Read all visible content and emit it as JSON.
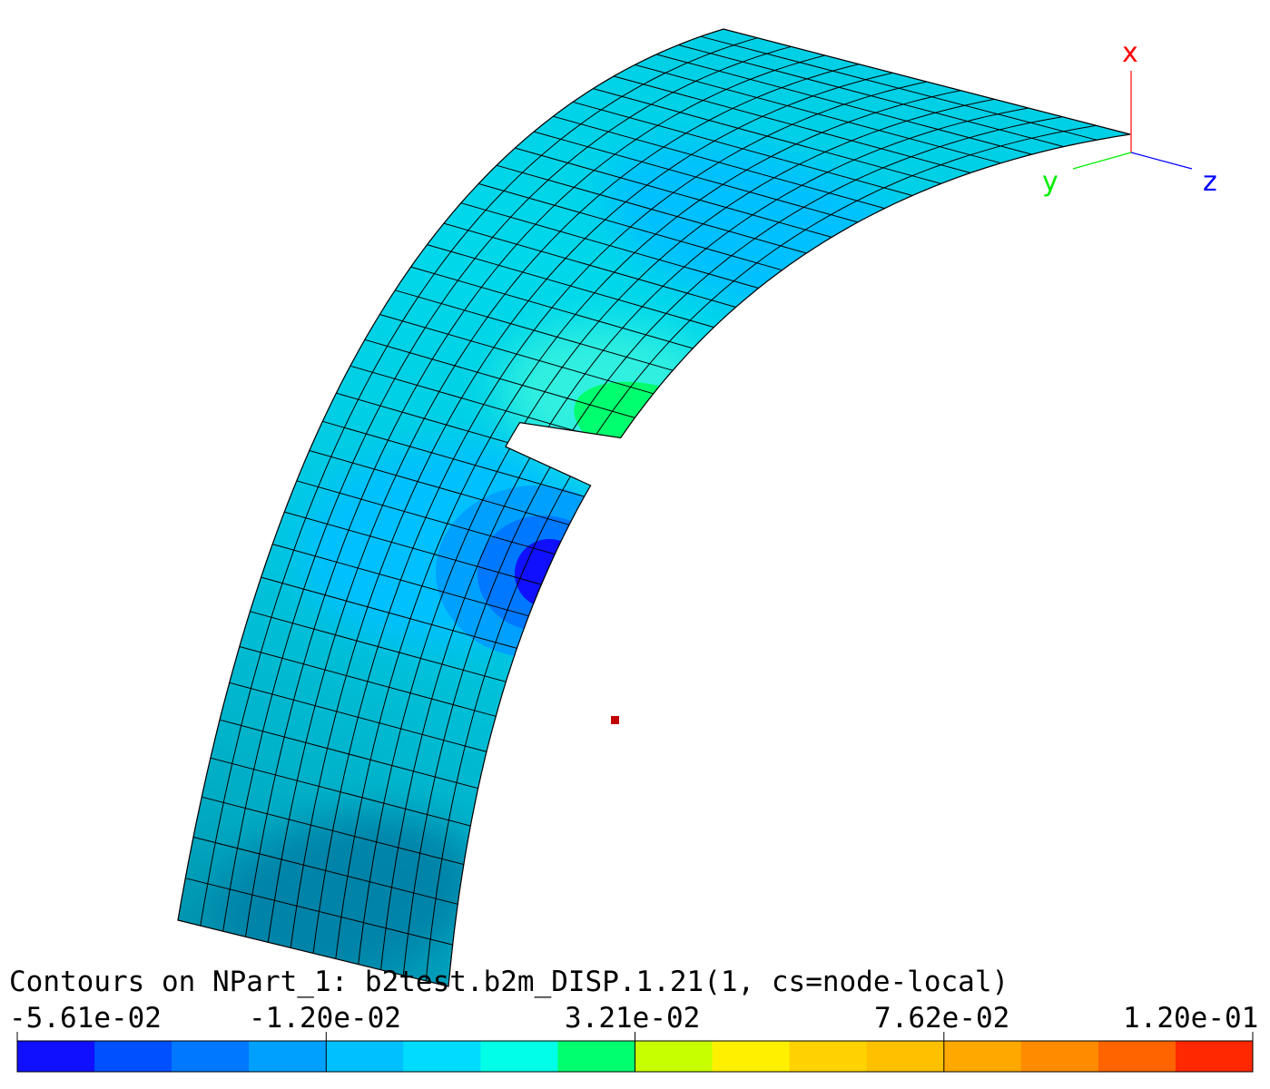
{
  "title": "Contours on NPart_1: b2test.b2m_DISP.1.21(1, cs=node-local)",
  "axes": {
    "x_label": "x",
    "y_label": "y",
    "z_label": "z",
    "x_color": "#ff0000",
    "y_color": "#00ee00",
    "z_color": "#0000ff"
  },
  "legend": {
    "labels": [
      "-5.61e-02",
      "-1.20e-02",
      "3.21e-02",
      "7.62e-02",
      "1.20e-01"
    ],
    "colors": [
      "#1010ff",
      "#0050ff",
      "#0078ff",
      "#00a0ff",
      "#00c0ff",
      "#00dcff",
      "#00ffe6",
      "#00ff6e",
      "#c8ff00",
      "#fff000",
      "#ffd200",
      "#ffc000",
      "#ffa800",
      "#ff8c00",
      "#ff6400",
      "#ff2800"
    ]
  },
  "marker_color": "#c00000",
  "mesh_color": "#000000"
}
